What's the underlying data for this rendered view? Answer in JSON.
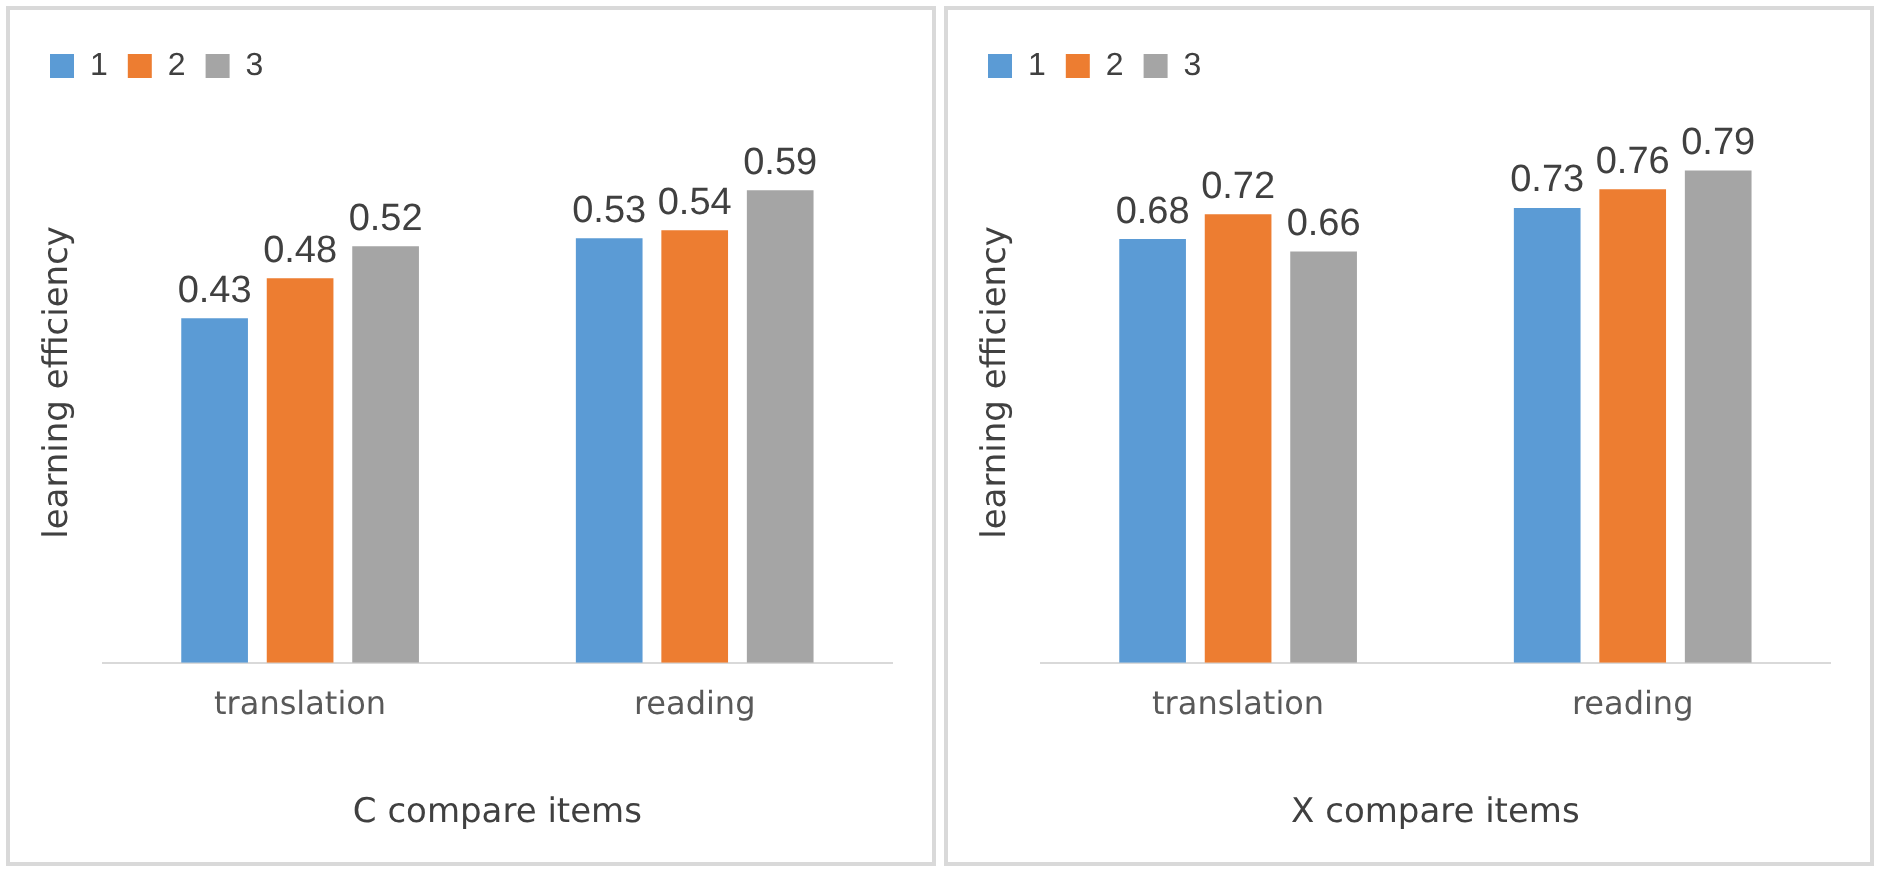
{
  "chart_data": [
    {
      "type": "bar",
      "xlabel": "C compare items",
      "ylabel": "learning efficiency",
      "categories": [
        "translation",
        "reading"
      ],
      "series": [
        {
          "name": "1",
          "color": "#5b9bd5",
          "values": [
            0.43,
            0.53
          ]
        },
        {
          "name": "2",
          "color": "#ed7d31",
          "values": [
            0.48,
            0.54
          ]
        },
        {
          "name": "3",
          "color": "#a5a5a5",
          "values": [
            0.52,
            0.59
          ]
        }
      ],
      "tick_labels": "x",
      "data_labels": true,
      "legend": "top left",
      "grid": false
    },
    {
      "type": "bar",
      "xlabel": "X compare items",
      "ylabel": "learning efficiency",
      "categories": [
        "translation",
        "reading"
      ],
      "series": [
        {
          "name": "1",
          "color": "#5b9bd5",
          "values": [
            0.68,
            0.73
          ]
        },
        {
          "name": "2",
          "color": "#ed7d31",
          "values": [
            0.72,
            0.76
          ]
        },
        {
          "name": "3",
          "color": "#a5a5a5",
          "values": [
            0.66,
            0.79
          ]
        }
      ],
      "tick_labels": "x",
      "data_labels": true,
      "legend": "top left",
      "grid": false
    }
  ]
}
